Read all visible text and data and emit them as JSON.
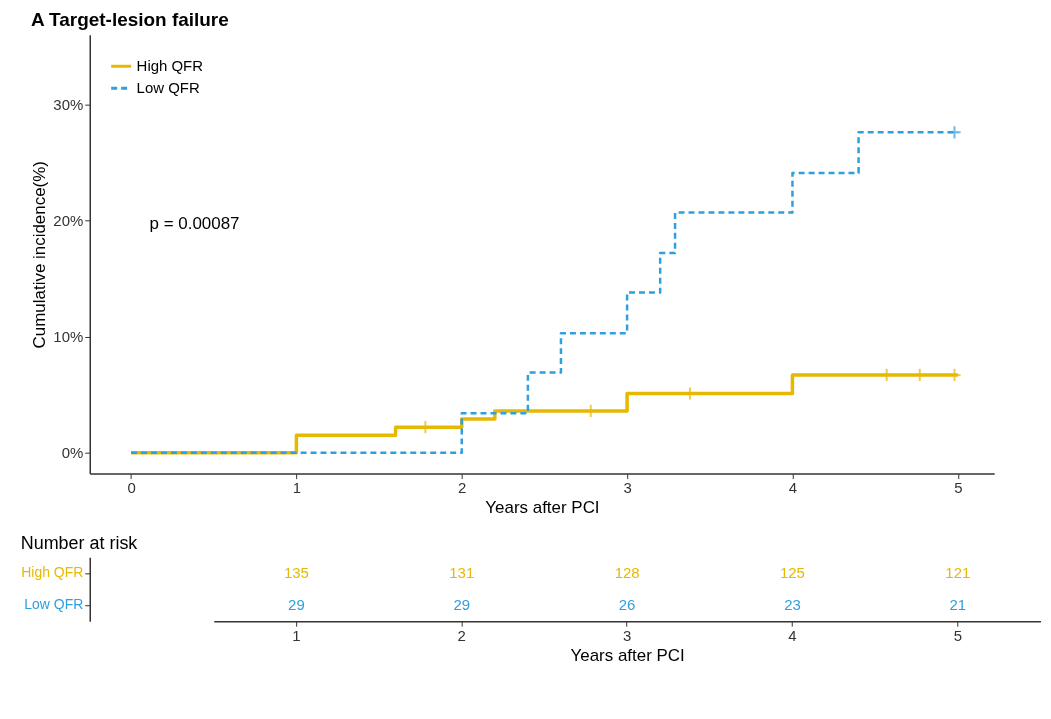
{
  "chart_data": [
    {
      "type": "step",
      "title": "A   Target-lesion failure",
      "xlabel": "Years after PCI",
      "ylabel": "Cumulative incidence(%)",
      "annotations": [
        "p = 0.00087"
      ],
      "xlim": [
        -0.25,
        5.22
      ],
      "xticks": [
        0,
        1,
        2,
        3,
        4,
        5
      ],
      "ylim": [
        -1.8,
        36
      ],
      "yticks": [
        {
          "value": 0,
          "label": "0%"
        },
        {
          "value": 10,
          "label": "10%"
        },
        {
          "value": 20,
          "label": "20%"
        },
        {
          "value": 30,
          "label": "30%"
        }
      ],
      "grid": false,
      "legend": "top left",
      "marker": "none",
      "series": [
        {
          "name": "High QFR",
          "color": "#e7b800",
          "line_style": "solid",
          "x": [
            0,
            1,
            1.6,
            2,
            2.2,
            3,
            4,
            5
          ],
          "values": [
            0,
            1.5,
            2.2,
            2.9,
            3.6,
            5.1,
            6.7,
            6.7
          ]
        },
        {
          "name": "Low QFR",
          "color": "#2e9fdf",
          "line_style": "dashed",
          "x": [
            0,
            2,
            2.4,
            2.6,
            3,
            3.2,
            3.29,
            4,
            4.4,
            5
          ],
          "values": [
            0,
            3.4,
            6.9,
            10.3,
            13.8,
            17.2,
            20.7,
            24.1,
            27.6,
            27.6
          ]
        },
        {
          "type": "scatter",
          "marker": "cross",
          "color": "#e7b800",
          "x": [
            1.78,
            2.78,
            3.38,
            4.57,
            4.77,
            4.98
          ],
          "values": [
            2.2,
            3.6,
            5.1,
            6.7,
            6.7,
            6.7
          ]
        },
        {
          "type": "scatter",
          "marker": "cross",
          "color": "#2e9fdf",
          "x": [
            4.98
          ],
          "values": [
            27.6
          ]
        }
      ]
    },
    {
      "type": "heatmap",
      "title": "Number at risk",
      "xlabel": "Years after PCI",
      "categories": [
        "1",
        "2",
        "3",
        "4",
        "5"
      ],
      "y_categories": [
        "High QFR",
        "Low QFR"
      ],
      "cells": [
        [
          135,
          131,
          128,
          125,
          121
        ],
        [
          29,
          29,
          26,
          23,
          21
        ]
      ],
      "data_labels": true,
      "colors": [
        "#e7b800",
        "#2e9fdf"
      ]
    }
  ]
}
